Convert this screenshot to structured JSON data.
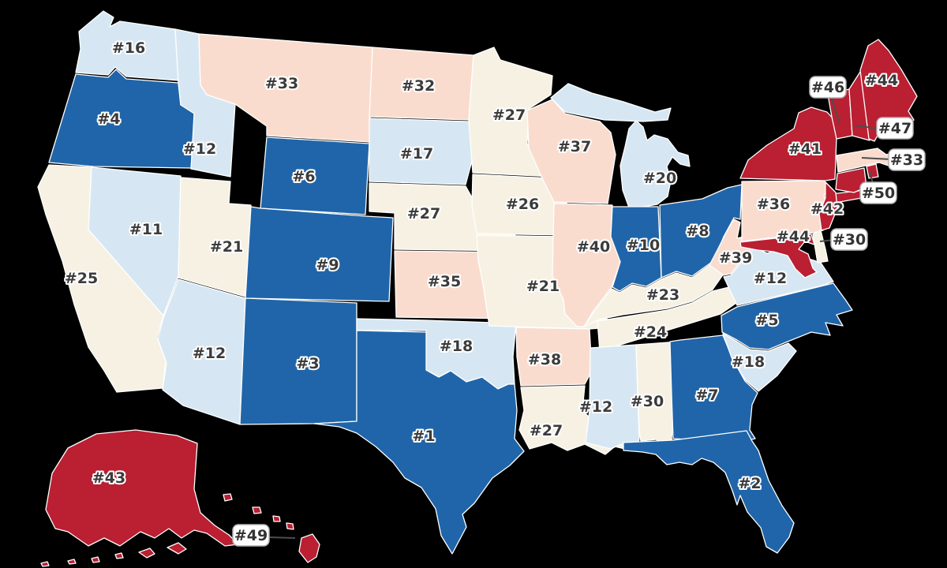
{
  "canvas": {
    "background": "#000000",
    "state_border_color": "#ffffff",
    "label_text_color": "#3b3b3b",
    "label_halo_color": "#ffffff"
  },
  "palette": {
    "rank_1_10": "#2065a9",
    "rank_11_20": "#d6e7f3",
    "rank_21_30": "#f6f1e3",
    "rank_31_40": "#fadcce",
    "rank_41_50": "#ba1f32"
  },
  "chart_data": {
    "type": "choropleth",
    "unit": "state rank",
    "states": [
      {
        "abbr": "WA",
        "name": "Washington",
        "label": "#16",
        "rank": 16,
        "color": "#d6e7f3"
      },
      {
        "abbr": "OR",
        "name": "Oregon",
        "label": "#4",
        "rank": 4,
        "color": "#2065a9"
      },
      {
        "abbr": "CA",
        "name": "California",
        "label": "#25",
        "rank": 25,
        "color": "#f6f1e3"
      },
      {
        "abbr": "NV",
        "name": "Nevada",
        "label": "#11",
        "rank": 11,
        "color": "#d6e7f3"
      },
      {
        "abbr": "ID",
        "name": "Idaho",
        "label": "#12",
        "rank": 12,
        "color": "#d6e7f3"
      },
      {
        "abbr": "MT",
        "name": "Montana",
        "label": "#33",
        "rank": 33,
        "color": "#fadcce"
      },
      {
        "abbr": "WY",
        "name": "Wyoming",
        "label": "#6",
        "rank": 6,
        "color": "#2065a9"
      },
      {
        "abbr": "UT",
        "name": "Utah",
        "label": "#21",
        "rank": 21,
        "color": "#f6f1e3"
      },
      {
        "abbr": "CO",
        "name": "Colorado",
        "label": "#9",
        "rank": 9,
        "color": "#2065a9"
      },
      {
        "abbr": "AZ",
        "name": "Arizona",
        "label": "#12",
        "rank": 12,
        "color": "#d6e7f3"
      },
      {
        "abbr": "NM",
        "name": "New Mexico",
        "label": "#3",
        "rank": 3,
        "color": "#2065a9"
      },
      {
        "abbr": "ND",
        "name": "North Dakota",
        "label": "#32",
        "rank": 32,
        "color": "#fadcce"
      },
      {
        "abbr": "SD",
        "name": "South Dakota",
        "label": "#17",
        "rank": 17,
        "color": "#d6e7f3"
      },
      {
        "abbr": "NE",
        "name": "Nebraska",
        "label": "#27",
        "rank": 27,
        "color": "#f6f1e3"
      },
      {
        "abbr": "KS",
        "name": "Kansas",
        "label": "#35",
        "rank": 35,
        "color": "#fadcce"
      },
      {
        "abbr": "OK",
        "name": "Oklahoma",
        "label": "#18",
        "rank": 18,
        "color": "#d6e7f3"
      },
      {
        "abbr": "TX",
        "name": "Texas",
        "label": "#1",
        "rank": 1,
        "color": "#2065a9"
      },
      {
        "abbr": "MN",
        "name": "Minnesota",
        "label": "#27",
        "rank": 27,
        "color": "#f6f1e3"
      },
      {
        "abbr": "IA",
        "name": "Iowa",
        "label": "#26",
        "rank": 26,
        "color": "#f6f1e3"
      },
      {
        "abbr": "MO",
        "name": "Missouri",
        "label": "#21",
        "rank": 21,
        "color": "#f6f1e3"
      },
      {
        "abbr": "AR",
        "name": "Arkansas",
        "label": "#38",
        "rank": 38,
        "color": "#fadcce"
      },
      {
        "abbr": "LA",
        "name": "Louisiana",
        "label": "#27",
        "rank": 27,
        "color": "#f6f1e3"
      },
      {
        "abbr": "WI",
        "name": "Wisconsin",
        "label": "#37",
        "rank": 37,
        "color": "#fadcce"
      },
      {
        "abbr": "IL",
        "name": "Illinois",
        "label": "#40",
        "rank": 40,
        "color": "#fadcce"
      },
      {
        "abbr": "MI",
        "name": "Michigan",
        "label": "#20",
        "rank": 20,
        "color": "#d6e7f3"
      },
      {
        "abbr": "IN",
        "name": "Indiana",
        "label": "#10",
        "rank": 10,
        "color": "#2065a9"
      },
      {
        "abbr": "OH",
        "name": "Ohio",
        "label": "#8",
        "rank": 8,
        "color": "#2065a9"
      },
      {
        "abbr": "KY",
        "name": "Kentucky",
        "label": "#23",
        "rank": 23,
        "color": "#f6f1e3"
      },
      {
        "abbr": "TN",
        "name": "Tennessee",
        "label": "#24",
        "rank": 24,
        "color": "#f6f1e3"
      },
      {
        "abbr": "MS",
        "name": "Mississippi",
        "label": "#12",
        "rank": 12,
        "color": "#d6e7f3"
      },
      {
        "abbr": "AL",
        "name": "Alabama",
        "label": "#30",
        "rank": 30,
        "color": "#f6f1e3"
      },
      {
        "abbr": "GA",
        "name": "Georgia",
        "label": "#7",
        "rank": 7,
        "color": "#2065a9"
      },
      {
        "abbr": "FL",
        "name": "Florida",
        "label": "#2",
        "rank": 2,
        "color": "#2065a9"
      },
      {
        "abbr": "SC",
        "name": "South Carolina",
        "label": "#18",
        "rank": 18,
        "color": "#d6e7f3"
      },
      {
        "abbr": "NC",
        "name": "North Carolina",
        "label": "#5",
        "rank": 5,
        "color": "#2065a9"
      },
      {
        "abbr": "VA",
        "name": "Virginia",
        "label": "#12",
        "rank": 12,
        "color": "#d6e7f3"
      },
      {
        "abbr": "WV",
        "name": "West Virginia",
        "label": "#39",
        "rank": 39,
        "color": "#fadcce"
      },
      {
        "abbr": "PA",
        "name": "Pennsylvania",
        "label": "#36",
        "rank": 36,
        "color": "#fadcce"
      },
      {
        "abbr": "NY",
        "name": "New York",
        "label": "#41",
        "rank": 41,
        "color": "#ba1f32"
      },
      {
        "abbr": "NJ",
        "name": "New Jersey",
        "label": "#42",
        "rank": 42,
        "color": "#ba1f32"
      },
      {
        "abbr": "MD",
        "name": "Maryland",
        "label": "#44",
        "rank": 44,
        "color": "#ba1f32"
      },
      {
        "abbr": "DE",
        "name": "Delaware",
        "label": "#30",
        "rank": 30,
        "color": "#f6f1e3"
      },
      {
        "abbr": "VT",
        "name": "Vermont",
        "label": "#46",
        "rank": 46,
        "color": "#ba1f32"
      },
      {
        "abbr": "NH",
        "name": "New Hampshire",
        "label": "#47",
        "rank": 47,
        "color": "#ba1f32"
      },
      {
        "abbr": "ME",
        "name": "Maine",
        "label": "#44",
        "rank": 44,
        "color": "#ba1f32"
      },
      {
        "abbr": "MA",
        "name": "Massachusetts",
        "label": "#33",
        "rank": 33,
        "color": "#fadcce"
      },
      {
        "abbr": "CT",
        "name": "Connecticut",
        "label": "",
        "rank": null,
        "color": "#ba1f32"
      },
      {
        "abbr": "RI",
        "name": "Rhode Island",
        "label": "#50",
        "rank": 50,
        "color": "#ba1f32"
      },
      {
        "abbr": "AK",
        "name": "Alaska",
        "label": "#43",
        "rank": 43,
        "color": "#ba1f32"
      },
      {
        "abbr": "HI",
        "name": "Hawaii",
        "label": "#49",
        "rank": 49,
        "color": "#ba1f32"
      }
    ],
    "callouts": [
      {
        "state": "VT",
        "label": "#46"
      },
      {
        "state": "NH",
        "label": "#47"
      },
      {
        "state": "MA",
        "label": "#33"
      },
      {
        "state": "RI",
        "label": "#50"
      },
      {
        "state": "DE",
        "label": "#30"
      },
      {
        "state": "HI",
        "label": "#49"
      }
    ]
  }
}
